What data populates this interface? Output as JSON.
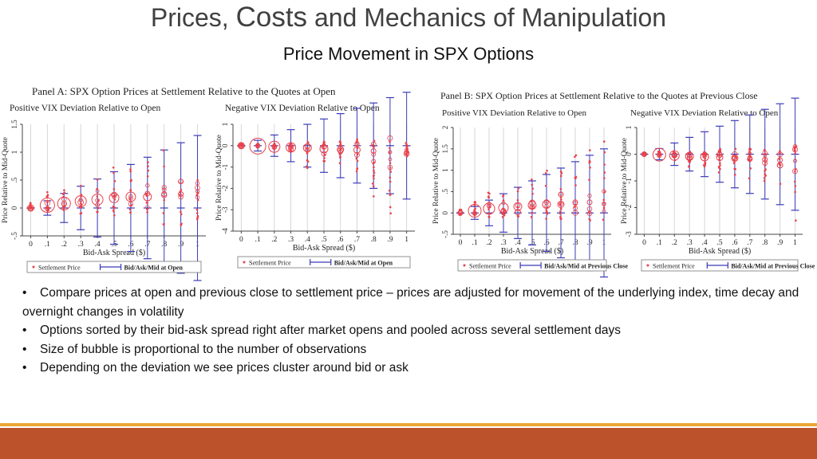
{
  "slide": {
    "title_pre": "Prices, ",
    "title_big": "Costs",
    "title_post": " and Mechanics of Manipulation",
    "subtitle": "Price Movement in SPX Options"
  },
  "panels": [
    {
      "title": "Panel A: SPX Option Prices at Settlement Relative to the Quotes at Open",
      "subtitles": [
        "Positive VIX Deviation Relative to Open",
        "Negative VIX Deviation Relative to Open"
      ],
      "legend": [
        "Settlement Price",
        "Bid/Ask/Mid at Open"
      ]
    },
    {
      "title": "Panel B: SPX Option Prices at Settlement Relative to the Quotes at Previous Close",
      "subtitles": [
        "Positive VIX Deviation Relative to Open",
        "Negative VIX Deviation Relative to Open"
      ],
      "legend": [
        "Settlement Price",
        "Bid/Ask/Mid at Previous Close"
      ]
    }
  ],
  "colors": {
    "settlement": "#e8414a",
    "quotes": "#3b3bb8",
    "footer_bar": "#bc522c",
    "footer_line": "#e8a735"
  },
  "chart_data": [
    {
      "type": "scatter",
      "panel": "A",
      "subtitle": "Positive VIX Deviation Relative to Open",
      "xlabel": "Bid-Ask Spread ($)",
      "ylabel": "Price Relative to Mid-Quote",
      "xticks": [
        "0",
        ".1",
        ".2",
        ".3",
        ".4",
        ".5",
        ".6",
        ".7",
        ".8",
        ".9",
        "1"
      ],
      "yticks": [
        "-.5",
        "0",
        ".5",
        "1",
        "1.5"
      ],
      "ylim": [
        -0.5,
        1.5
      ],
      "x": [
        0,
        0.1,
        0.2,
        0.3,
        0.4,
        0.5,
        0.6,
        0.7,
        0.8,
        0.9,
        1.0
      ],
      "settlement_center": [
        0,
        0.05,
        0.08,
        0.12,
        0.15,
        0.18,
        0.2,
        0.2,
        0.25,
        0.25,
        0.3
      ],
      "bubble_size": [
        4,
        9,
        8,
        7,
        7,
        6,
        6,
        5,
        3,
        3,
        2
      ],
      "settlement_min": [
        0,
        -0.05,
        -0.05,
        -0.1,
        -0.1,
        -0.15,
        -0.1,
        -0.2,
        -0.3,
        -0.4,
        -0.3
      ],
      "settlement_max": [
        0.1,
        0.3,
        0.35,
        0.45,
        0.7,
        0.75,
        0.95,
        0.9,
        1.3,
        0.8,
        0.6
      ],
      "bid": [
        0,
        -0.05,
        -0.1,
        -0.15,
        -0.2,
        -0.25,
        -0.3,
        -0.35,
        -0.4,
        -0.45,
        -0.5
      ],
      "mid": [
        0,
        0,
        0,
        0,
        0,
        0,
        0,
        0,
        0,
        0,
        0
      ],
      "ask": [
        0,
        0.05,
        0.1,
        0.15,
        0.2,
        0.25,
        0.3,
        0.35,
        0.4,
        0.45,
        0.5
      ],
      "legend": "bottom"
    },
    {
      "type": "scatter",
      "panel": "A",
      "subtitle": "Negative VIX Deviation Relative to Open",
      "xlabel": "Bid-Ask Spread ($)",
      "ylabel": "Price Relative to Mid-Quote",
      "xticks": [
        "0",
        ".1",
        ".2",
        ".3",
        ".4",
        ".5",
        ".6",
        ".7",
        ".8",
        ".9",
        "1"
      ],
      "yticks": [
        "-4",
        "-3",
        "-2",
        "-1",
        "0",
        "1"
      ],
      "ylim": [
        -4,
        1
      ],
      "x": [
        0,
        0.1,
        0.2,
        0.3,
        0.4,
        0.5,
        0.6,
        0.7,
        0.8,
        0.9,
        1.0
      ],
      "settlement_center": [
        0,
        -0.02,
        -0.05,
        -0.08,
        -0.1,
        -0.15,
        -0.18,
        -0.2,
        -0.25,
        -0.3,
        -0.3
      ],
      "bubble_size": [
        4,
        10,
        7,
        6,
        5,
        5,
        4,
        4,
        3,
        2,
        2
      ],
      "settlement_min": [
        0,
        -0.1,
        -0.2,
        -0.4,
        -1.4,
        -1.2,
        -0.9,
        -1.5,
        -2.5,
        -3.6,
        -0.5
      ],
      "settlement_max": [
        0.05,
        0.1,
        0.1,
        0.1,
        0.2,
        0.2,
        0.2,
        0.3,
        0.3,
        0.2,
        0.2
      ],
      "bid": [
        0,
        -0.05,
        -0.1,
        -0.15,
        -0.2,
        -0.25,
        -0.3,
        -0.35,
        -0.4,
        -0.45,
        -0.5
      ],
      "mid": [
        0,
        0,
        0,
        0,
        0,
        0,
        0,
        0,
        0,
        0,
        0
      ],
      "ask": [
        0,
        0.05,
        0.1,
        0.15,
        0.2,
        0.25,
        0.3,
        0.35,
        0.4,
        0.45,
        0.5
      ],
      "legend": "bottom"
    },
    {
      "type": "scatter",
      "panel": "B",
      "subtitle": "Positive VIX Deviation Relative to Open",
      "xlabel": "Bid-Ask Spread ($)",
      "ylabel": "Price Relative to Mid-Quote",
      "xticks": [
        "0",
        ".1",
        ".2",
        ".3",
        ".4",
        ".5",
        ".6",
        ".7",
        ".8",
        ".9",
        "1"
      ],
      "yticks": [
        "-.5",
        "0",
        ".5",
        "1",
        "1.5",
        "2"
      ],
      "ylim": [
        -0.5,
        2
      ],
      "x": [
        0,
        0.1,
        0.2,
        0.3,
        0.4,
        0.5,
        0.6,
        0.7,
        0.8,
        0.9,
        1.0
      ],
      "settlement_center": [
        0,
        0.05,
        0.1,
        0.12,
        0.15,
        0.18,
        0.2,
        0.2,
        0.25,
        0.25,
        0.2
      ],
      "bubble_size": [
        3,
        8,
        7,
        6,
        5,
        5,
        5,
        4,
        3,
        3,
        2
      ],
      "settlement_min": [
        -0.05,
        -0.05,
        -0.1,
        -0.1,
        -0.1,
        -0.1,
        -0.15,
        -0.15,
        -0.2,
        -0.2,
        -0.2
      ],
      "settlement_max": [
        0.1,
        0.3,
        0.5,
        0.5,
        0.6,
        0.9,
        1.0,
        1.2,
        1.4,
        1.7,
        1.8
      ],
      "bid": [
        0,
        -0.05,
        -0.1,
        -0.15,
        -0.2,
        -0.25,
        -0.3,
        -0.35,
        -0.4,
        -0.45,
        -0.5
      ],
      "mid": [
        0,
        0,
        0,
        0,
        0,
        0,
        0,
        0,
        0,
        0,
        0
      ],
      "ask": [
        0,
        0.05,
        0.1,
        0.15,
        0.2,
        0.25,
        0.3,
        0.35,
        0.4,
        0.45,
        0.5
      ],
      "legend": "bottom"
    },
    {
      "type": "scatter",
      "panel": "B",
      "subtitle": "Negative VIX Deviation Relative to Open",
      "xlabel": "Bid-Ask Spread ($)",
      "ylabel": "Price Relative to Mid-Quote",
      "xticks": [
        "0",
        ".1",
        ".2",
        ".3",
        ".4",
        ".5",
        ".6",
        ".7",
        ".8",
        ".9",
        "1"
      ],
      "yticks": [
        "-3",
        "-2",
        "-1",
        "0",
        "1"
      ],
      "ylim": [
        -3,
        1
      ],
      "x": [
        0,
        0.1,
        0.2,
        0.3,
        0.4,
        0.5,
        0.6,
        0.7,
        0.8,
        0.9,
        1.0
      ],
      "settlement_center": [
        0,
        -0.02,
        -0.05,
        -0.08,
        -0.1,
        -0.12,
        -0.15,
        -0.18,
        -0.2,
        -0.22,
        -0.25
      ],
      "bubble_size": [
        3,
        8,
        6,
        5,
        5,
        4,
        4,
        3,
        3,
        3,
        2
      ],
      "settlement_min": [
        0,
        -0.1,
        -0.3,
        -0.6,
        -0.5,
        -0.9,
        -0.8,
        -1.0,
        -1.1,
        -1.3,
        -2.5
      ],
      "settlement_max": [
        0.05,
        0.1,
        0.1,
        0.1,
        0.1,
        0.2,
        0.2,
        0.2,
        0.2,
        0.2,
        0.3
      ],
      "bid": [
        0,
        -0.05,
        -0.1,
        -0.15,
        -0.2,
        -0.25,
        -0.3,
        -0.35,
        -0.4,
        -0.45,
        -0.5
      ],
      "mid": [
        0,
        0,
        0,
        0,
        0,
        0,
        0,
        0,
        0,
        0,
        0
      ],
      "ask": [
        0,
        0.05,
        0.1,
        0.15,
        0.2,
        0.25,
        0.3,
        0.35,
        0.4,
        0.45,
        0.5
      ],
      "legend": "bottom"
    }
  ],
  "bullets": [
    "Compare prices at open and previous close to settlement price – prices are adjusted for movement of the underlying index, time decay and overnight changes in volatility",
    "Options sorted by their bid-ask spread right after market opens and pooled across several settlement days",
    "Size of bubble is proportional to the number of observations",
    "Depending on the deviation we see prices cluster around bid or ask"
  ]
}
